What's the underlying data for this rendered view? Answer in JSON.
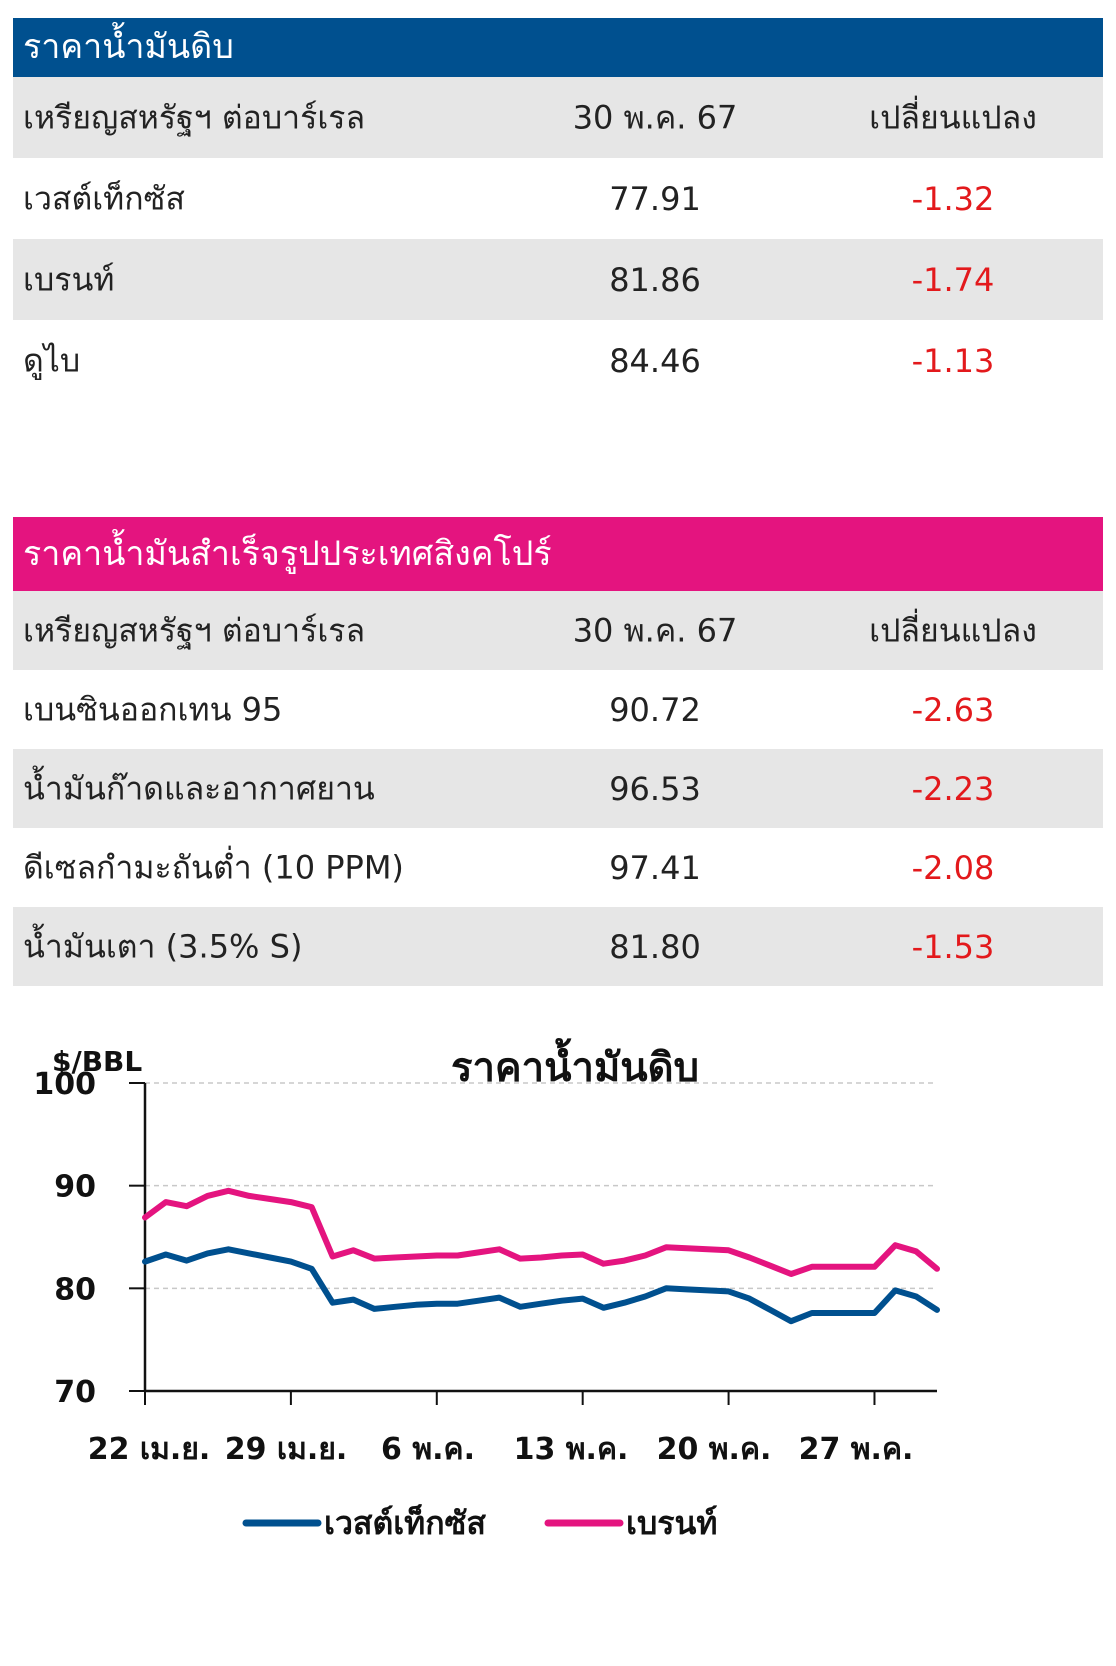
{
  "crude_table": {
    "title": "ราคาน้ำมันดิบ",
    "header": {
      "unit": "เหรียญสหรัฐฯ ต่อบาร์เรล",
      "date": "30 พ.ค. 67",
      "change": "เปลี่ยนแปลง"
    },
    "rows": [
      {
        "name": "เวสต์เท็กซัส",
        "price": "77.91",
        "change": "-1.32"
      },
      {
        "name": "เบรนท์",
        "price": "81.86",
        "change": "-1.74"
      },
      {
        "name": "ดูไบ",
        "price": "84.46",
        "change": "-1.13"
      }
    ]
  },
  "refined_table": {
    "title": "ราคาน้ำมันสำเร็จรูปประเทศสิงคโปร์",
    "header": {
      "unit": "เหรียญสหรัฐฯ ต่อบาร์เรล",
      "date": "30 พ.ค. 67",
      "change": "เปลี่ยนแปลง"
    },
    "rows": [
      {
        "name": "เบนซินออกเทน 95",
        "price": "90.72",
        "change": "-2.63"
      },
      {
        "name": "น้ำมันก๊าดและอากาศยาน",
        "price": "96.53",
        "change": "-2.23"
      },
      {
        "name": "ดีเซลกำมะถันต่ำ (10 PPM)",
        "price": "97.41",
        "change": "-2.08"
      },
      {
        "name": "น้ำมันเตา (3.5% S)",
        "price": "81.80",
        "change": "-1.53"
      }
    ]
  },
  "colors": {
    "crude_header": "#00508f",
    "refined_header": "#e4147f",
    "negative": "#e3191c",
    "wti": "#00508f",
    "brent": "#e4147f"
  },
  "chart_data": {
    "type": "line",
    "title": "ราคาน้ำมันดิบ",
    "ylabel": "$/BBL",
    "ylim": [
      70,
      100
    ],
    "yticks": [
      70,
      80,
      90,
      100
    ],
    "grid": true,
    "x_tick_labels": [
      "22 เม.ย.",
      "29 เม.ย.",
      "6 พ.ค.",
      "13 พ.ค.",
      "20 พ.ค.",
      "27 พ.ค."
    ],
    "x_tick_index": [
      0,
      7,
      14,
      21,
      28,
      35
    ],
    "legend_position": "bottom",
    "series": [
      {
        "name": "เวสต์เท็กซัส",
        "color": "#00508f",
        "values": [
          82.6,
          83.3,
          82.7,
          83.4,
          83.8,
          83.4,
          83.0,
          82.6,
          81.9,
          78.6,
          78.9,
          78.0,
          78.2,
          78.4,
          78.5,
          78.5,
          78.8,
          79.1,
          78.2,
          78.5,
          78.8,
          79.0,
          78.1,
          78.6,
          79.2,
          80.0,
          79.9,
          79.8,
          79.7,
          79.0,
          77.9,
          76.8,
          77.6,
          77.6,
          77.6,
          77.6,
          79.8,
          79.2,
          77.9
        ]
      },
      {
        "name": "เบรนท์",
        "color": "#e4147f",
        "values": [
          86.9,
          88.4,
          88.0,
          89.0,
          89.5,
          89.0,
          88.7,
          88.4,
          87.9,
          83.1,
          83.7,
          82.9,
          83.0,
          83.1,
          83.2,
          83.2,
          83.5,
          83.8,
          82.9,
          83.0,
          83.2,
          83.3,
          82.4,
          82.7,
          83.2,
          84.0,
          83.9,
          83.8,
          83.7,
          83.0,
          82.2,
          81.4,
          82.1,
          82.1,
          82.1,
          82.1,
          84.2,
          83.6,
          81.9
        ]
      }
    ]
  }
}
